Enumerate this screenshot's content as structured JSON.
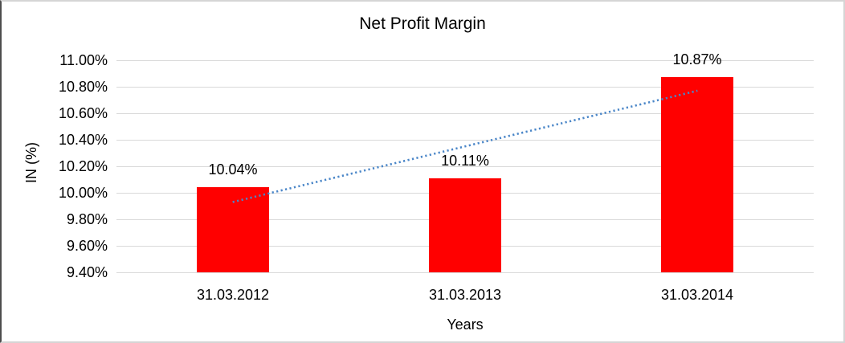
{
  "chart_data": {
    "type": "bar",
    "title": "Net Profit Margin",
    "xlabel": "Years",
    "ylabel": "IN (%)",
    "categories": [
      "31.03.2012",
      "31.03.2013",
      "31.03.2014"
    ],
    "values": [
      10.04,
      10.11,
      10.87
    ],
    "data_labels": [
      "10.04%",
      "10.11%",
      "10.87%"
    ],
    "y_ticks": [
      "11.00%",
      "10.80%",
      "10.60%",
      "10.40%",
      "10.20%",
      "10.00%",
      "9.80%",
      "9.60%",
      "9.40%"
    ],
    "ylim": [
      9.4,
      11.0
    ],
    "grid": true,
    "legend": "none",
    "bar_color": "#ff0000",
    "gridline_color": "#d9d9d9",
    "trendline": {
      "style": "dotted",
      "color": "#4a86c8",
      "start_category_index": 0,
      "end_category_index": 2,
      "start_value": 9.93,
      "end_value": 10.77
    }
  }
}
